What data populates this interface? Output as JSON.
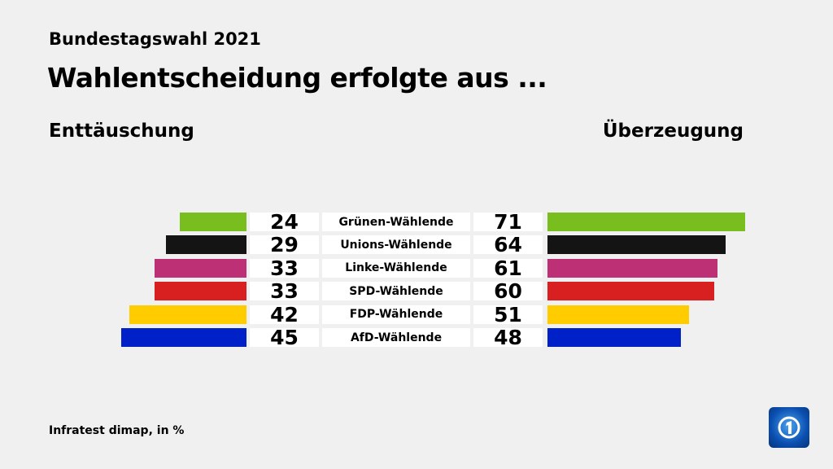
{
  "header": {
    "supertitle": "Bundestagswahl 2021",
    "title": "Wahlentscheidung erfolgte aus ..."
  },
  "footer": {
    "source": "Infratest dimap, in %"
  },
  "logo": {
    "icon": "tagesschau-logo"
  },
  "chart_data": {
    "type": "bar",
    "orientation": "horizontal-diverging",
    "categories": [
      "Grünen-Wählende",
      "Unions-Wählende",
      "Linke-Wählende",
      "SPD-Wählende",
      "FDP-Wählende",
      "AfD-Wählende"
    ],
    "colors": [
      "#78be1e",
      "#141414",
      "#be3075",
      "#d7201f",
      "#ffcc00",
      "#0021c8"
    ],
    "series": [
      {
        "name": "Enttäuschung",
        "side": "left",
        "values": [
          24,
          29,
          33,
          33,
          42,
          45
        ]
      },
      {
        "name": "Überzeugung",
        "side": "right",
        "values": [
          71,
          64,
          61,
          60,
          51,
          48
        ]
      }
    ],
    "unit": "%"
  }
}
